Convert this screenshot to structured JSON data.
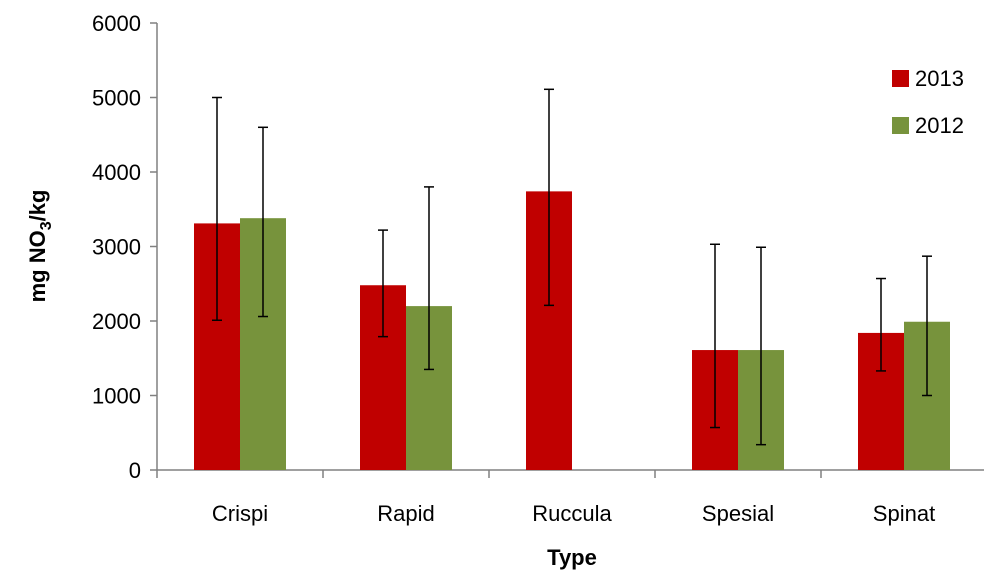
{
  "chart_data": {
    "type": "bar",
    "categories": [
      "Crispi",
      "Rapid",
      "Ruccula",
      "Spesial",
      "Spinat"
    ],
    "series": [
      {
        "name": "2013",
        "color": "#C00000",
        "values": [
          3310,
          2480,
          3740,
          1610,
          1840
        ],
        "error_low": [
          2010,
          1790,
          2210,
          570,
          1330
        ],
        "error_high": [
          5000,
          3220,
          5110,
          3030,
          2570
        ]
      },
      {
        "name": "2012",
        "color": "#77933C",
        "values": [
          3380,
          2200,
          null,
          1610,
          1990
        ],
        "error_low": [
          2060,
          1350,
          null,
          340,
          1000
        ],
        "error_high": [
          4600,
          3800,
          null,
          2990,
          2870
        ]
      }
    ],
    "xlabel": "Type",
    "ylabel": {
      "prefix": "mg NO",
      "subscript": "3",
      "suffix": "/kg"
    },
    "ylim": [
      0,
      6000
    ],
    "yticks": [
      0,
      1000,
      2000,
      3000,
      4000,
      5000,
      6000
    ],
    "grid": false,
    "legend_position": "top-right"
  }
}
